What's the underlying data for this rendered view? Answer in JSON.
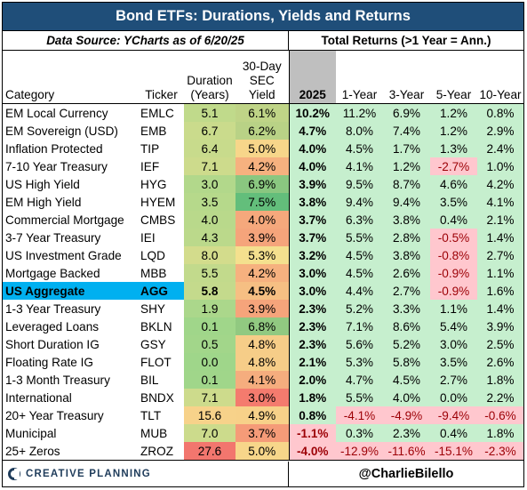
{
  "title": "Bond ETFs: Durations, Yields and Returns",
  "subheader_left": "Data Source: YCharts as of 6/20/25",
  "subheader_right": "Total Returns (>1 Year = Ann.)",
  "columns": {
    "category": "Category",
    "ticker": "Ticker",
    "duration_l1": "Duration",
    "duration_l2": "(Years)",
    "yield_l1": "30-Day",
    "yield_l2": "SEC",
    "yield_l3": "Yield",
    "ytd": "2025",
    "y1": "1-Year",
    "y3": "3-Year",
    "y5": "5-Year",
    "y10": "10-Year"
  },
  "rows": [
    {
      "category": "EM Local Currency",
      "ticker": "EMLC",
      "duration": "5.1",
      "yield": "6.1%",
      "ytd": "10.2%",
      "y1": "11.2%",
      "y3": "6.9%",
      "y5": "1.2%",
      "y10": "0.8%"
    },
    {
      "category": "EM Sovereign (USD)",
      "ticker": "EMB",
      "duration": "6.7",
      "yield": "6.2%",
      "ytd": "4.7%",
      "y1": "8.0%",
      "y3": "7.4%",
      "y5": "1.2%",
      "y10": "2.9%"
    },
    {
      "category": "Inflation Protected",
      "ticker": "TIP",
      "duration": "6.4",
      "yield": "5.0%",
      "ytd": "4.0%",
      "y1": "4.5%",
      "y3": "1.7%",
      "y5": "1.3%",
      "y10": "2.4%"
    },
    {
      "category": "7-10 Year Treasury",
      "ticker": "IEF",
      "duration": "7.1",
      "yield": "4.2%",
      "ytd": "4.0%",
      "y1": "4.1%",
      "y3": "1.2%",
      "y5": "-2.7%",
      "y10": "1.0%"
    },
    {
      "category": "US High Yield",
      "ticker": "HYG",
      "duration": "3.0",
      "yield": "6.9%",
      "ytd": "3.9%",
      "y1": "9.5%",
      "y3": "8.7%",
      "y5": "4.6%",
      "y10": "4.2%"
    },
    {
      "category": "EM High Yield",
      "ticker": "HYEM",
      "duration": "3.5",
      "yield": "7.5%",
      "ytd": "3.8%",
      "y1": "9.4%",
      "y3": "9.4%",
      "y5": "3.5%",
      "y10": "4.1%"
    },
    {
      "category": "Commercial Mortgage",
      "ticker": "CMBS",
      "duration": "4.0",
      "yield": "4.0%",
      "ytd": "3.7%",
      "y1": "6.3%",
      "y3": "3.8%",
      "y5": "0.4%",
      "y10": "2.1%"
    },
    {
      "category": "3-7 Year Treasury",
      "ticker": "IEI",
      "duration": "4.3",
      "yield": "3.9%",
      "ytd": "3.7%",
      "y1": "5.5%",
      "y3": "2.8%",
      "y5": "-0.5%",
      "y10": "1.4%"
    },
    {
      "category": "US Investment Grade",
      "ticker": "LQD",
      "duration": "8.0",
      "yield": "5.3%",
      "ytd": "3.2%",
      "y1": "4.5%",
      "y3": "3.8%",
      "y5": "-0.8%",
      "y10": "2.7%"
    },
    {
      "category": "Mortgage Backed",
      "ticker": "MBB",
      "duration": "5.5",
      "yield": "4.2%",
      "ytd": "3.0%",
      "y1": "4.5%",
      "y3": "2.6%",
      "y5": "-0.9%",
      "y10": "1.1%"
    },
    {
      "category": "US Aggregate",
      "ticker": "AGG",
      "duration": "5.8",
      "yield": "4.5%",
      "ytd": "3.0%",
      "y1": "4.4%",
      "y3": "2.7%",
      "y5": "-0.9%",
      "y10": "1.6%",
      "highlight": true
    },
    {
      "category": "1-3 Year Treasury",
      "ticker": "SHY",
      "duration": "1.9",
      "yield": "3.9%",
      "ytd": "2.3%",
      "y1": "5.2%",
      "y3": "3.3%",
      "y5": "1.1%",
      "y10": "1.4%"
    },
    {
      "category": "Leveraged Loans",
      "ticker": "BKLN",
      "duration": "0.1",
      "yield": "6.8%",
      "ytd": "2.3%",
      "y1": "7.1%",
      "y3": "8.6%",
      "y5": "5.4%",
      "y10": "3.9%"
    },
    {
      "category": "Short Duration IG",
      "ticker": "GSY",
      "duration": "0.5",
      "yield": "4.8%",
      "ytd": "2.3%",
      "y1": "5.6%",
      "y3": "5.2%",
      "y5": "3.0%",
      "y10": "2.5%"
    },
    {
      "category": "Floating Rate IG",
      "ticker": "FLOT",
      "duration": "0.0",
      "yield": "4.8%",
      "ytd": "2.1%",
      "y1": "5.3%",
      "y3": "5.8%",
      "y5": "3.5%",
      "y10": "2.6%"
    },
    {
      "category": "1-3 Month Treasury",
      "ticker": "BIL",
      "duration": "0.1",
      "yield": "4.1%",
      "ytd": "2.0%",
      "y1": "4.7%",
      "y3": "4.5%",
      "y5": "2.7%",
      "y10": "1.8%"
    },
    {
      "category": "International",
      "ticker": "BNDX",
      "duration": "7.1",
      "yield": "3.0%",
      "ytd": "1.8%",
      "y1": "5.5%",
      "y3": "4.0%",
      "y5": "0.0%",
      "y10": "2.2%"
    },
    {
      "category": "20+ Year Treasury",
      "ticker": "TLT",
      "duration": "15.6",
      "yield": "4.9%",
      "ytd": "0.8%",
      "y1": "-4.1%",
      "y3": "-4.9%",
      "y5": "-9.4%",
      "y10": "-0.6%"
    },
    {
      "category": "Municipal",
      "ticker": "MUB",
      "duration": "7.0",
      "yield": "3.7%",
      "ytd": "-1.1%",
      "y1": "0.3%",
      "y3": "2.3%",
      "y5": "0.4%",
      "y10": "1.8%"
    },
    {
      "category": "25+ Zeros",
      "ticker": "ZROZ",
      "duration": "27.6",
      "yield": "5.0%",
      "ytd": "-4.0%",
      "y1": "-12.9%",
      "y3": "-11.6%",
      "y5": "-15.1%",
      "y10": "-2.3%"
    }
  ],
  "colors": {
    "title_bg": "#1f4e79",
    "highlight_bg": "#00b0f0",
    "return_positive_bg": "#c6efce",
    "return_negative_bg": "#ffc7ce",
    "return_negative_text": "#9c0006"
  },
  "footer": {
    "logo_text": "CREATIVE PLANNING",
    "logo_icon": "creative-planning-c-icon",
    "handle": "@CharlieBilello"
  }
}
